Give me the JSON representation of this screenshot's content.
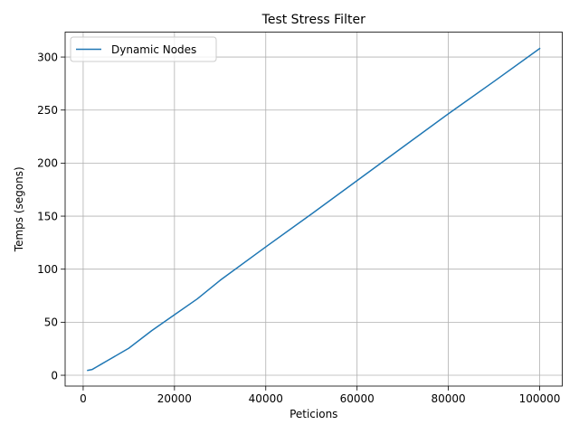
{
  "chart_data": {
    "type": "line",
    "title": "Test Stress Filter",
    "xlabel": "Peticions",
    "ylabel": "Temps (segons)",
    "xlim": [
      -3950,
      104950
    ],
    "ylim": [
      -10.2,
      323.5
    ],
    "xticks": [
      0,
      20000,
      40000,
      60000,
      80000,
      100000
    ],
    "yticks": [
      0,
      50,
      100,
      150,
      200,
      250,
      300
    ],
    "xtick_labels": [
      "0",
      "20000",
      "40000",
      "60000",
      "80000",
      "100000"
    ],
    "ytick_labels": [
      "0",
      "50",
      "100",
      "150",
      "200",
      "250",
      "300"
    ],
    "grid": true,
    "legend_position": "upper left",
    "series": [
      {
        "name": "Dynamic Nodes",
        "color": "#1f77b4",
        "x": [
          1000,
          2000,
          3000,
          4000,
          5000,
          10000,
          15000,
          20000,
          25000,
          30000,
          40000,
          50000,
          60000,
          70000,
          80000,
          90000,
          100000
        ],
        "y": [
          4.6,
          5.5,
          8.0,
          10.5,
          13.0,
          25.5,
          42.0,
          57.0,
          72.0,
          89.5,
          121.0,
          152.0,
          183.5,
          215.0,
          246.5,
          277.0,
          308.0
        ]
      }
    ]
  }
}
